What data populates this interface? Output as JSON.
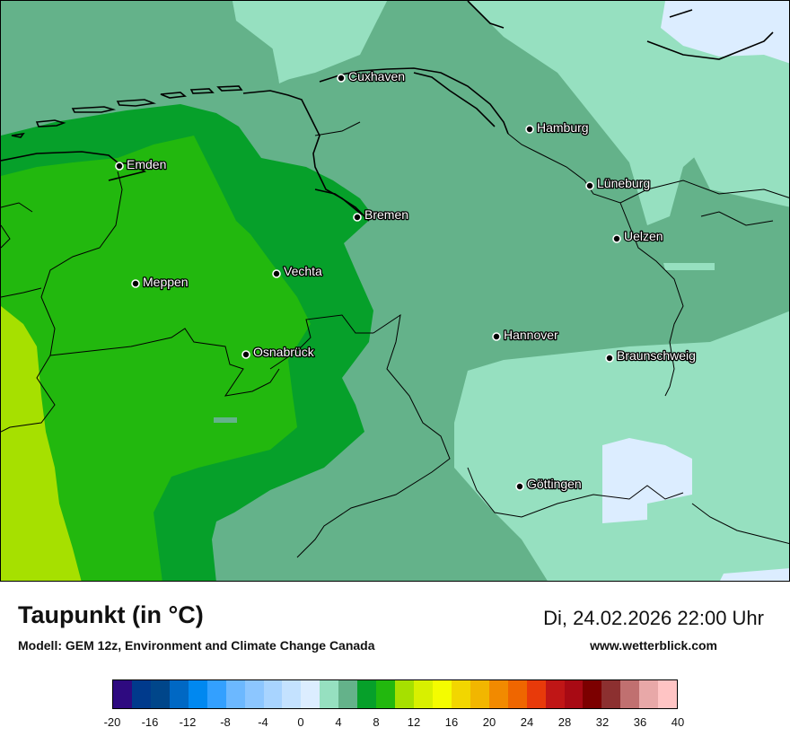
{
  "title": "Taupunkt (in °C)",
  "model": "Modell: GEM 12z, Environment and Climate Change Canada",
  "datetime": "Di, 24.02.2026 22:00 Uhr",
  "website": "www.wetterblick.com",
  "cities": [
    {
      "name": "Cuxhaven"
    },
    {
      "name": "Hamburg"
    },
    {
      "name": "Emden"
    },
    {
      "name": "Lüneburg"
    },
    {
      "name": "Bremen"
    },
    {
      "name": "Uelzen"
    },
    {
      "name": "Vechta"
    },
    {
      "name": "Meppen"
    },
    {
      "name": "Hannover"
    },
    {
      "name": "Osnabrück"
    },
    {
      "name": "Braunschweig"
    },
    {
      "name": "Göttingen"
    }
  ],
  "legend": {
    "colors": [
      "#2e0a80",
      "#003a8c",
      "#00468a",
      "#0068c4",
      "#0088f0",
      "#33a0ff",
      "#6cb8ff",
      "#8cc6ff",
      "#a8d4ff",
      "#c4e2ff",
      "#dcedff",
      "#96e0c0",
      "#64b28a",
      "#06a02a",
      "#22b80e",
      "#a6e000",
      "#d8f000",
      "#f4fc00",
      "#f2d600",
      "#f2b600",
      "#f28a00",
      "#ef6600",
      "#e83a0a",
      "#c01616",
      "#a80a14",
      "#7c0000",
      "#8c3030",
      "#c07070",
      "#e8a8a8",
      "#ffc4c4"
    ],
    "ticks": [
      "-20",
      "-16",
      "-12",
      "-8",
      "-4",
      "0",
      "4",
      "8",
      "12",
      "16",
      "20",
      "24",
      "28",
      "32",
      "36",
      "40"
    ]
  }
}
